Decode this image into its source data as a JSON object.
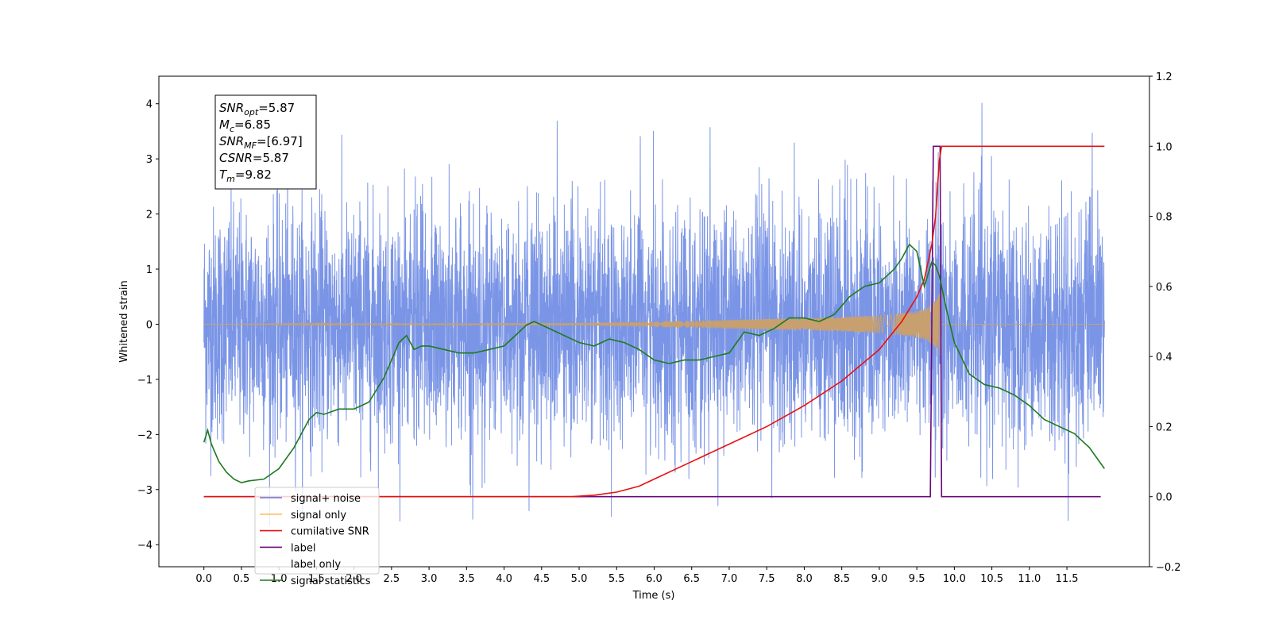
{
  "chart_data": {
    "type": "line",
    "xlabel": "Time (s)",
    "ylabel": "Whitened strain",
    "xlim": [
      -0.6,
      12.6
    ],
    "ylim": [
      -4.4,
      4.5
    ],
    "y2lim": [
      -0.2,
      1.2
    ],
    "x_ticks": [
      "0.0",
      "0.5",
      "1.0",
      "1.5",
      "2.0",
      "2.5",
      "3.0",
      "3.5",
      "4.0",
      "4.5",
      "5.0",
      "5.5",
      "6.0",
      "6.5",
      "7.0",
      "7.5",
      "8.0",
      "8.5",
      "9.0",
      "9.5",
      "10.0",
      "10.5",
      "11.0",
      "11.5"
    ],
    "y_ticks": [
      "4",
      "3",
      "2",
      "1",
      "0",
      "−1",
      "−2",
      "−3",
      "−4"
    ],
    "y2_ticks": [
      "1.2",
      "1.0",
      "0.8",
      "0.6",
      "0.4",
      "0.2",
      "0.0",
      "−0.2"
    ],
    "info_box": [
      {
        "sym": "SNR",
        "sub": "opt",
        "text": "=5.87"
      },
      {
        "sym": "M",
        "sub": "c",
        "text": "=6.85"
      },
      {
        "sym": "SNR",
        "sub": "MF",
        "text": "=[6.97]"
      },
      {
        "sym": "CSNR",
        "sub": "",
        "text": "=5.87"
      },
      {
        "sym": "T",
        "sub": "m",
        "text": "=9.82"
      }
    ],
    "merger_time": 9.82,
    "series": [
      {
        "name": "signal+ noise",
        "color": "#5a7be0",
        "axis": "left",
        "note_visible_envelope": [
          -3.7,
          4.1
        ]
      },
      {
        "name": "signal only",
        "color": "#ffbe5a",
        "axis": "left",
        "x": [
          0,
          5.0,
          6.0,
          7.0,
          8.0,
          8.5,
          9.0,
          9.3,
          9.5,
          9.6,
          9.7,
          9.78,
          9.82
        ],
        "amplitude": [
          0.0,
          0.02,
          0.05,
          0.08,
          0.11,
          0.13,
          0.16,
          0.2,
          0.24,
          0.28,
          0.36,
          0.5,
          0.6
        ]
      },
      {
        "name": "cumilative SNR",
        "color": "#e81010",
        "axis": "right",
        "x": [
          0.0,
          4.9,
          5.2,
          5.5,
          5.8,
          6.0,
          6.5,
          7.0,
          7.5,
          8.0,
          8.5,
          9.0,
          9.3,
          9.5,
          9.6,
          9.7,
          9.75,
          9.8,
          9.83,
          12.0
        ],
        "y": [
          0.0,
          0.0,
          0.004,
          0.013,
          0.03,
          0.05,
          0.1,
          0.15,
          0.2,
          0.26,
          0.33,
          0.42,
          0.5,
          0.57,
          0.62,
          0.72,
          0.8,
          0.96,
          1.0,
          1.0
        ]
      },
      {
        "name": "label",
        "color": "#6b0a7a",
        "axis": "right",
        "x": [
          0.0,
          9.68,
          9.72,
          9.81,
          9.83,
          11.95
        ],
        "y": [
          0.0,
          0.0,
          1.0,
          1.0,
          0.0,
          0.0
        ]
      },
      {
        "name": "label only",
        "color": "#999999",
        "axis": "right"
      },
      {
        "name": "signal statistics",
        "color": "#1e7a1e",
        "axis": "right",
        "x": [
          0.0,
          0.05,
          0.1,
          0.2,
          0.3,
          0.4,
          0.5,
          0.6,
          0.8,
          1.0,
          1.2,
          1.4,
          1.5,
          1.6,
          1.8,
          2.0,
          2.2,
          2.4,
          2.6,
          2.7,
          2.8,
          2.9,
          3.0,
          3.2,
          3.4,
          3.6,
          3.8,
          4.0,
          4.2,
          4.3,
          4.4,
          4.5,
          4.7,
          4.9,
          5.0,
          5.2,
          5.4,
          5.6,
          5.8,
          6.0,
          6.2,
          6.4,
          6.6,
          6.8,
          7.0,
          7.2,
          7.4,
          7.6,
          7.8,
          8.0,
          8.2,
          8.4,
          8.6,
          8.8,
          9.0,
          9.2,
          9.3,
          9.4,
          9.5,
          9.55,
          9.6,
          9.7,
          9.75,
          9.8,
          9.9,
          10.0,
          10.2,
          10.4,
          10.6,
          10.8,
          11.0,
          11.2,
          11.4,
          11.6,
          11.8,
          12.0
        ],
        "y": [
          0.155,
          0.19,
          0.15,
          0.1,
          0.07,
          0.05,
          0.04,
          0.045,
          0.05,
          0.08,
          0.14,
          0.22,
          0.24,
          0.235,
          0.25,
          0.25,
          0.27,
          0.34,
          0.44,
          0.46,
          0.42,
          0.43,
          0.43,
          0.42,
          0.41,
          0.41,
          0.42,
          0.43,
          0.47,
          0.49,
          0.5,
          0.49,
          0.47,
          0.45,
          0.44,
          0.43,
          0.45,
          0.44,
          0.42,
          0.39,
          0.38,
          0.39,
          0.39,
          0.4,
          0.41,
          0.47,
          0.46,
          0.48,
          0.51,
          0.51,
          0.5,
          0.52,
          0.57,
          0.6,
          0.61,
          0.65,
          0.68,
          0.72,
          0.7,
          0.65,
          0.6,
          0.67,
          0.66,
          0.63,
          0.53,
          0.44,
          0.35,
          0.32,
          0.31,
          0.29,
          0.26,
          0.22,
          0.2,
          0.18,
          0.14,
          0.08
        ]
      }
    ]
  }
}
